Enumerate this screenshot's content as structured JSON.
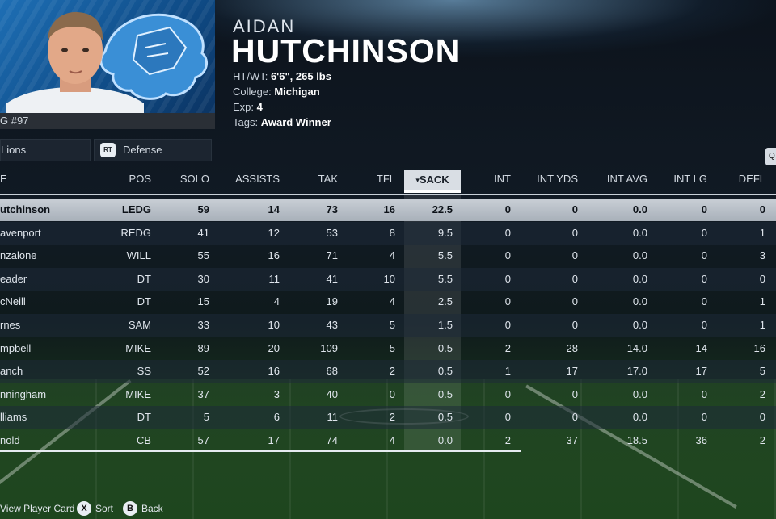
{
  "player": {
    "first_name": "AIDAN",
    "last_name": "HUTCHINSON",
    "jersey": "G #97",
    "htwt_label": "HT/WT:",
    "htwt_value": "6'6\", 265 lbs",
    "college_label": "College:",
    "college_value": "Michigan",
    "exp_label": "Exp:",
    "exp_value": "4",
    "tags_label": "Tags:",
    "tags_value": "Award Winner"
  },
  "filters": {
    "team": "Lions",
    "side_button": "RT",
    "side": "Defense",
    "q_button": "Q"
  },
  "table": {
    "columns": {
      "name": "E",
      "pos": "POS",
      "solo": "SOLO",
      "assists": "ASSISTS",
      "tak": "TAK",
      "tfl": "TFL",
      "sack": "SACK",
      "sort_indicator": "▾",
      "int": "INT",
      "int_yds": "INT YDS",
      "int_avg": "INT AVG",
      "int_lg": "INT LG",
      "defl": "DEFL"
    },
    "rows": [
      {
        "name": "utchinson",
        "pos": "LEDG",
        "solo": "59",
        "assists": "14",
        "tak": "73",
        "tfl": "16",
        "sack": "22.5",
        "int": "0",
        "int_yds": "0",
        "int_avg": "0.0",
        "int_lg": "0",
        "defl": "0"
      },
      {
        "name": "avenport",
        "pos": "REDG",
        "solo": "41",
        "assists": "12",
        "tak": "53",
        "tfl": "8",
        "sack": "9.5",
        "int": "0",
        "int_yds": "0",
        "int_avg": "0.0",
        "int_lg": "0",
        "defl": "1"
      },
      {
        "name": "nzalone",
        "pos": "WILL",
        "solo": "55",
        "assists": "16",
        "tak": "71",
        "tfl": "4",
        "sack": "5.5",
        "int": "0",
        "int_yds": "0",
        "int_avg": "0.0",
        "int_lg": "0",
        "defl": "3"
      },
      {
        "name": "eader",
        "pos": "DT",
        "solo": "30",
        "assists": "11",
        "tak": "41",
        "tfl": "10",
        "sack": "5.5",
        "int": "0",
        "int_yds": "0",
        "int_avg": "0.0",
        "int_lg": "0",
        "defl": "0"
      },
      {
        "name": "cNeill",
        "pos": "DT",
        "solo": "15",
        "assists": "4",
        "tak": "19",
        "tfl": "4",
        "sack": "2.5",
        "int": "0",
        "int_yds": "0",
        "int_avg": "0.0",
        "int_lg": "0",
        "defl": "1"
      },
      {
        "name": "rnes",
        "pos": "SAM",
        "solo": "33",
        "assists": "10",
        "tak": "43",
        "tfl": "5",
        "sack": "1.5",
        "int": "0",
        "int_yds": "0",
        "int_avg": "0.0",
        "int_lg": "0",
        "defl": "1"
      },
      {
        "name": "mpbell",
        "pos": "MIKE",
        "solo": "89",
        "assists": "20",
        "tak": "109",
        "tfl": "5",
        "sack": "0.5",
        "int": "2",
        "int_yds": "28",
        "int_avg": "14.0",
        "int_lg": "14",
        "defl": "16"
      },
      {
        "name": "anch",
        "pos": "SS",
        "solo": "52",
        "assists": "16",
        "tak": "68",
        "tfl": "2",
        "sack": "0.5",
        "int": "1",
        "int_yds": "17",
        "int_avg": "17.0",
        "int_lg": "17",
        "defl": "5"
      },
      {
        "name": "nningham",
        "pos": "MIKE",
        "solo": "37",
        "assists": "3",
        "tak": "40",
        "tfl": "0",
        "sack": "0.5",
        "int": "0",
        "int_yds": "0",
        "int_avg": "0.0",
        "int_lg": "0",
        "defl": "2"
      },
      {
        "name": "lliams",
        "pos": "DT",
        "solo": "5",
        "assists": "6",
        "tak": "11",
        "tfl": "2",
        "sack": "0.5",
        "int": "0",
        "int_yds": "0",
        "int_avg": "0.0",
        "int_lg": "0",
        "defl": "0"
      },
      {
        "name": "nold",
        "pos": "CB",
        "solo": "57",
        "assists": "17",
        "tak": "74",
        "tfl": "4",
        "sack": "0.0",
        "int": "2",
        "int_yds": "37",
        "int_avg": "18.5",
        "int_lg": "36",
        "defl": "2"
      }
    ]
  },
  "footer": {
    "view_card": "View Player Card",
    "sort_button": "X",
    "sort": "Sort",
    "back_button": "B",
    "back": "Back"
  },
  "colors": {
    "team_blue": "#1e6fb5",
    "selected_row": "#c9cfd6",
    "header_text": "#d3dae2"
  }
}
